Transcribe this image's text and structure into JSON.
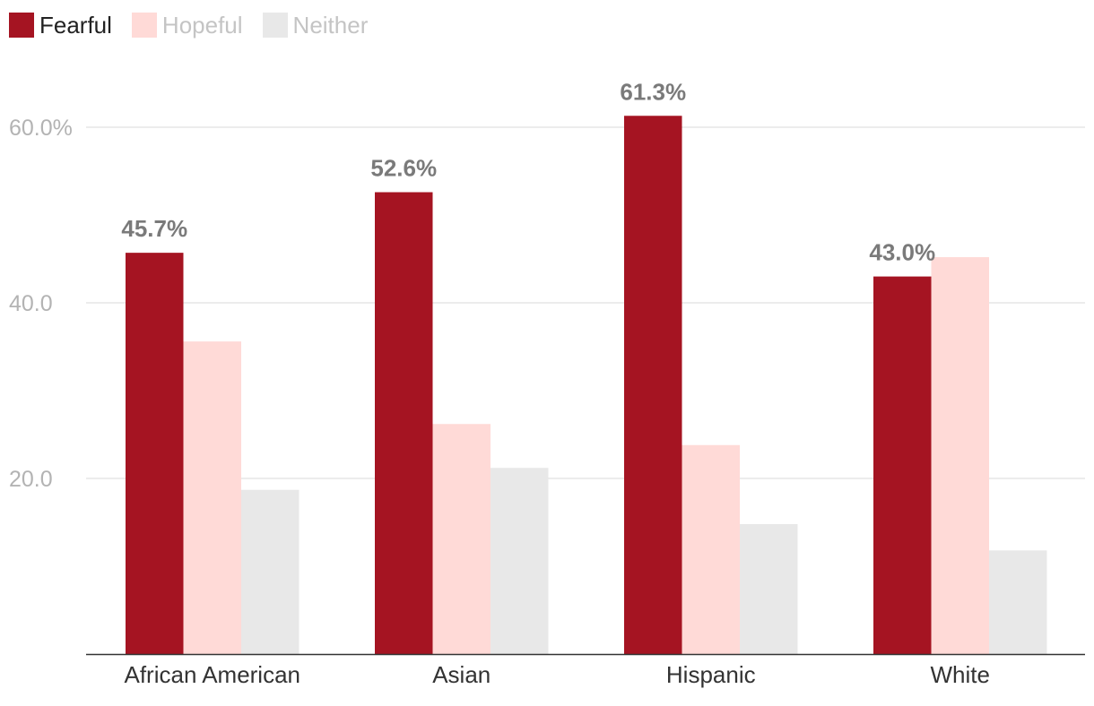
{
  "chart_data": {
    "type": "bar",
    "categories": [
      "African American",
      "Asian",
      "Hispanic",
      "White"
    ],
    "series": [
      {
        "name": "Fearful",
        "values": [
          45.7,
          52.6,
          61.3,
          43.0
        ],
        "color": "#a51422",
        "legend_active": true
      },
      {
        "name": "Hopeful",
        "values": [
          35.6,
          26.2,
          23.8,
          45.2
        ],
        "color": "#ffdad7",
        "legend_active": false
      },
      {
        "name": "Neither",
        "values": [
          18.7,
          21.2,
          14.8,
          11.8
        ],
        "color": "#e8e8e8",
        "legend_active": false
      }
    ],
    "data_labels": {
      "series": "Fearful",
      "text": [
        "45.7%",
        "52.6%",
        "61.3%",
        "43.0%"
      ]
    },
    "y_ticks": [
      {
        "value": 20,
        "label": "20.0"
      },
      {
        "value": 40,
        "label": "40.0"
      },
      {
        "value": 60,
        "label": "60.0%"
      }
    ],
    "ylim": [
      0,
      60
    ],
    "grid": true,
    "legend_position": "top-left"
  },
  "colors": {
    "legend_active_text": "#222222",
    "legend_inactive_text": "#c4c4c4",
    "gridline": "#e6e6e6",
    "axis": "#333333"
  }
}
